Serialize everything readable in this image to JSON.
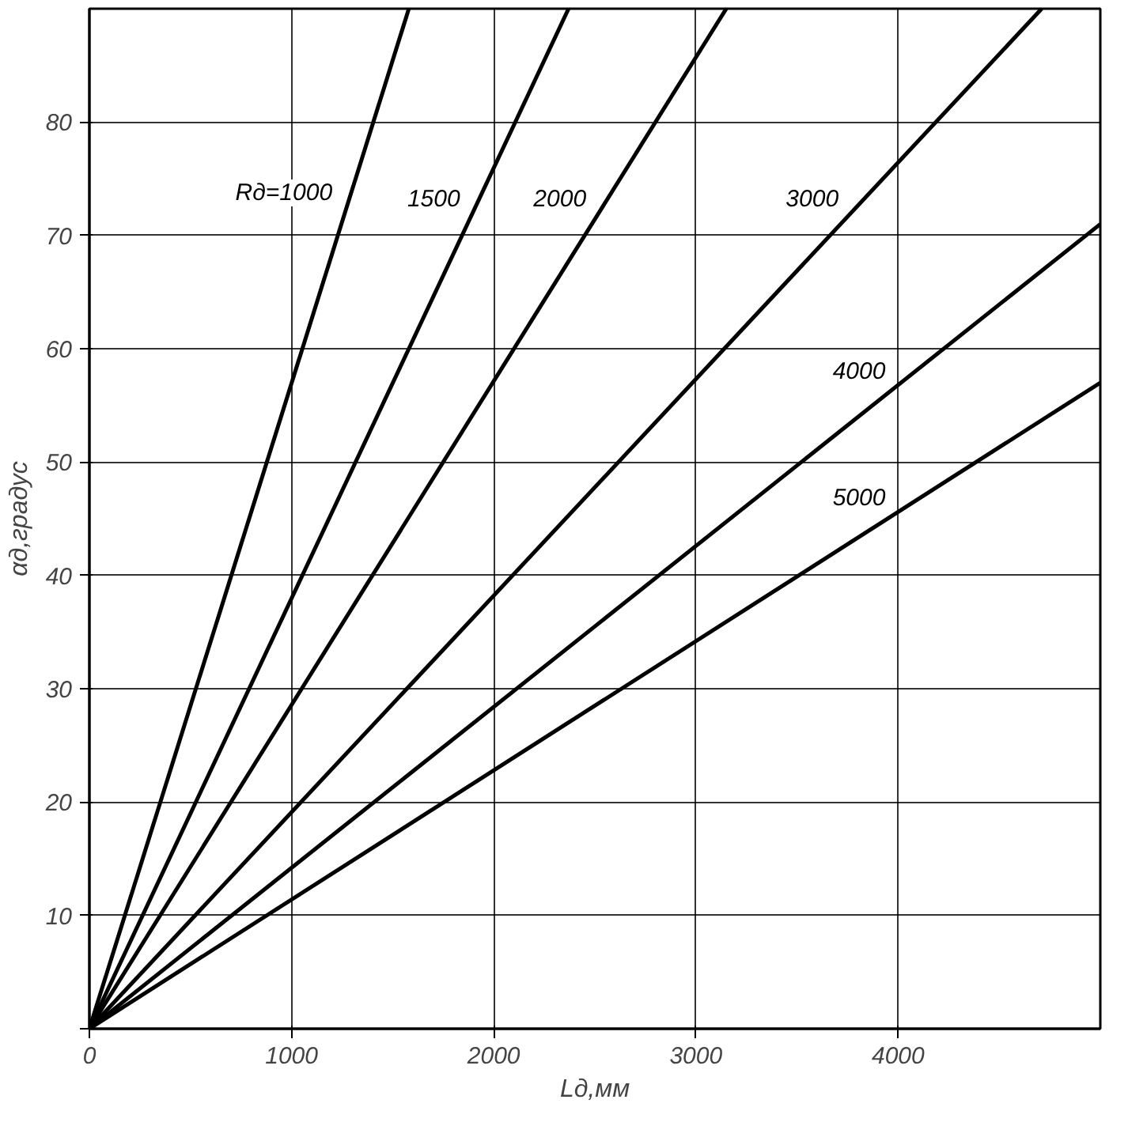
{
  "chart_data": {
    "type": "line",
    "xlabel": "Lд,мм",
    "ylabel": "αд,градус",
    "xlim": [
      0,
      5000
    ],
    "ylim": [
      0,
      90
    ],
    "xticks": [
      0,
      1000,
      2000,
      3000,
      4000
    ],
    "yticks": [
      {
        "value": 0,
        "label": null
      },
      10,
      20,
      30,
      40,
      50,
      60,
      70,
      80
    ],
    "grid": true,
    "marker": "none",
    "line_style": "solid",
    "series": [
      {
        "name": "Rд=1000",
        "color": "#000000",
        "x": [
          0,
          1580
        ],
        "values": [
          0,
          90
        ]
      },
      {
        "name": "1500",
        "color": "#000000",
        "x": [
          0,
          2370
        ],
        "values": [
          0,
          90
        ]
      },
      {
        "name": "2000",
        "color": "#000000",
        "x": [
          0,
          3150
        ],
        "values": [
          0,
          90
        ]
      },
      {
        "name": "3000",
        "color": "#000000",
        "x": [
          0,
          4710
        ],
        "values": [
          0,
          90
        ]
      },
      {
        "name": "4000",
        "color": "#000000",
        "x": [
          0,
          5000
        ],
        "values": [
          0,
          71
        ]
      },
      {
        "name": "5000",
        "color": "#000000",
        "x": [
          0,
          5000
        ],
        "values": [
          0,
          57
        ]
      }
    ]
  }
}
